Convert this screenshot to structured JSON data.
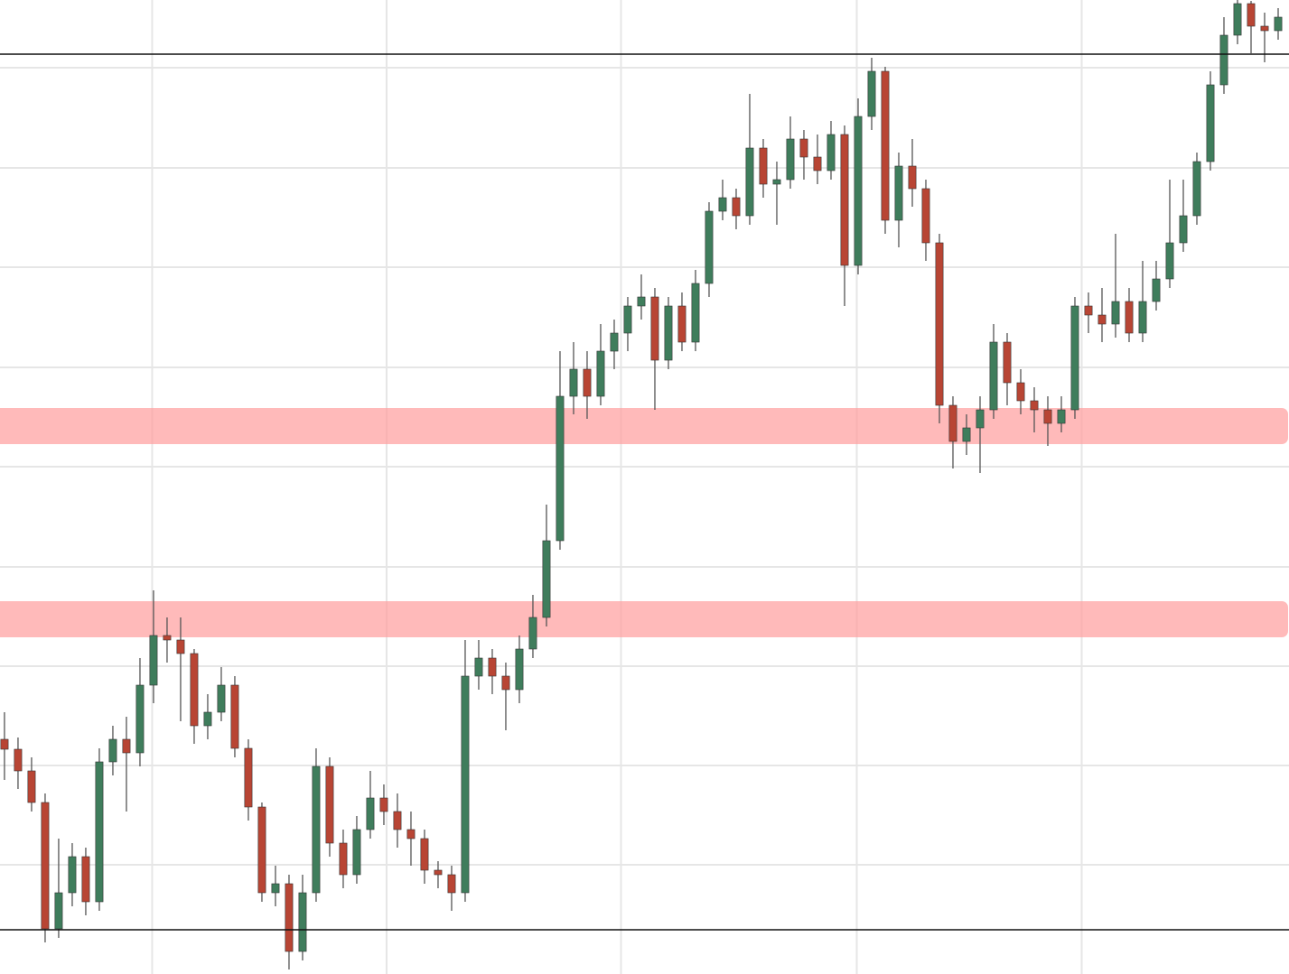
{
  "chart_data": {
    "type": "candlestick",
    "up_color": "#3f7d5c",
    "down_color": "#b84534",
    "wick_color": "#555555",
    "grid": true,
    "grid_color": "#e6e6e6",
    "level_color": "#111111",
    "zone_color": "#ff9d9d",
    "xlim": [
      -0.33,
      94.8
    ],
    "xticks": [
      10.9,
      28.2,
      45.5,
      62.9,
      79.5
    ],
    "ylim": [
      0,
      1079
    ],
    "yticks": [
      1004,
      893,
      783,
      672,
      562,
      451,
      341,
      231,
      121
    ],
    "levels": [
      1019,
      49
    ],
    "zones": [
      [
        587,
        627
      ],
      [
        373,
        413
      ]
    ],
    "candles": [
      [
        260,
        290,
        215,
        249
      ],
      [
        249,
        262,
        205,
        225
      ],
      [
        225,
        240,
        180,
        190
      ],
      [
        190,
        200,
        35,
        50
      ],
      [
        50,
        150,
        40,
        90
      ],
      [
        90,
        145,
        75,
        130
      ],
      [
        130,
        140,
        65,
        80
      ],
      [
        80,
        250,
        70,
        235
      ],
      [
        235,
        275,
        220,
        260
      ],
      [
        260,
        285,
        180,
        245
      ],
      [
        245,
        350,
        230,
        320
      ],
      [
        320,
        425,
        300,
        375
      ],
      [
        375,
        395,
        345,
        370
      ],
      [
        370,
        395,
        280,
        355
      ],
      [
        355,
        360,
        255,
        275
      ],
      [
        275,
        310,
        260,
        290
      ],
      [
        290,
        340,
        280,
        320
      ],
      [
        320,
        330,
        240,
        250
      ],
      [
        250,
        260,
        170,
        185
      ],
      [
        185,
        190,
        80,
        90
      ],
      [
        90,
        120,
        75,
        100
      ],
      [
        100,
        110,
        5,
        25
      ],
      [
        25,
        110,
        15,
        90
      ],
      [
        90,
        250,
        80,
        230
      ],
      [
        230,
        240,
        130,
        145
      ],
      [
        145,
        160,
        95,
        110
      ],
      [
        110,
        175,
        100,
        160
      ],
      [
        160,
        225,
        150,
        195
      ],
      [
        195,
        210,
        165,
        180
      ],
      [
        180,
        200,
        140,
        160
      ],
      [
        160,
        180,
        120,
        150
      ],
      [
        150,
        160,
        100,
        115
      ],
      [
        115,
        125,
        95,
        110
      ],
      [
        110,
        120,
        70,
        90
      ],
      [
        90,
        370,
        80,
        330
      ],
      [
        330,
        370,
        315,
        350
      ],
      [
        350,
        360,
        310,
        330
      ],
      [
        330,
        345,
        270,
        315
      ],
      [
        315,
        375,
        300,
        360
      ],
      [
        360,
        420,
        350,
        395
      ],
      [
        395,
        520,
        385,
        480
      ],
      [
        480,
        690,
        470,
        640
      ],
      [
        640,
        700,
        620,
        670
      ],
      [
        670,
        690,
        615,
        640
      ],
      [
        640,
        720,
        630,
        690
      ],
      [
        690,
        725,
        670,
        710
      ],
      [
        710,
        750,
        690,
        740
      ],
      [
        740,
        775,
        725,
        750
      ],
      [
        750,
        760,
        625,
        680
      ],
      [
        680,
        750,
        670,
        740
      ],
      [
        740,
        755,
        690,
        700
      ],
      [
        700,
        780,
        690,
        765
      ],
      [
        765,
        855,
        750,
        845
      ],
      [
        845,
        880,
        835,
        860
      ],
      [
        860,
        870,
        825,
        840
      ],
      [
        840,
        975,
        830,
        915
      ],
      [
        915,
        925,
        860,
        875
      ],
      [
        875,
        900,
        830,
        880
      ],
      [
        880,
        950,
        870,
        925
      ],
      [
        925,
        935,
        880,
        905
      ],
      [
        905,
        930,
        875,
        890
      ],
      [
        890,
        945,
        880,
        930
      ],
      [
        930,
        940,
        740,
        785
      ],
      [
        785,
        970,
        775,
        950
      ],
      [
        950,
        1015,
        935,
        1000
      ],
      [
        1000,
        1005,
        820,
        835
      ],
      [
        835,
        910,
        805,
        895
      ],
      [
        895,
        925,
        850,
        870
      ],
      [
        870,
        880,
        790,
        810
      ],
      [
        810,
        820,
        610,
        630
      ],
      [
        630,
        640,
        560,
        590
      ],
      [
        590,
        620,
        575,
        605
      ],
      [
        605,
        640,
        555,
        625
      ],
      [
        625,
        720,
        615,
        700
      ],
      [
        700,
        710,
        630,
        655
      ],
      [
        655,
        670,
        620,
        635
      ],
      [
        635,
        650,
        600,
        625
      ],
      [
        625,
        640,
        585,
        610
      ],
      [
        610,
        640,
        600,
        625
      ],
      [
        625,
        750,
        615,
        740
      ],
      [
        740,
        755,
        710,
        730
      ],
      [
        730,
        760,
        700,
        720
      ],
      [
        720,
        820,
        705,
        745
      ],
      [
        745,
        760,
        700,
        710
      ],
      [
        710,
        790,
        700,
        745
      ],
      [
        745,
        790,
        735,
        770
      ],
      [
        770,
        880,
        760,
        810
      ],
      [
        810,
        880,
        800,
        840
      ],
      [
        840,
        910,
        830,
        900
      ],
      [
        900,
        1000,
        890,
        985
      ],
      [
        985,
        1060,
        975,
        1040
      ],
      [
        1040,
        1079,
        1030,
        1075
      ],
      [
        1075,
        1078,
        1020,
        1050
      ],
      [
        1050,
        1065,
        1010,
        1045
      ],
      [
        1045,
        1070,
        1035,
        1060
      ]
    ]
  }
}
